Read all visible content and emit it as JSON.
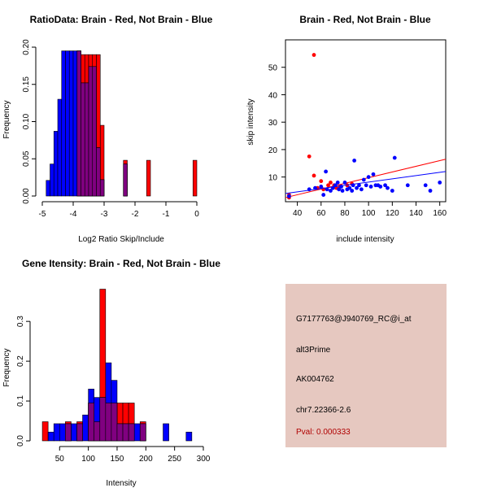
{
  "colors": {
    "red": "#ff0000",
    "blue": "#0000ff",
    "overlap": "#800080",
    "panel": "#e6c8c0",
    "pval": "#b00000"
  },
  "chart_data": [
    {
      "type": "bar",
      "subtype": "overlapping-histogram",
      "title": "RatioData: Brain - Red, Not Brain - Blue",
      "xlabel": "Log2 Ratio Skip/Include",
      "ylabel": "Frequency",
      "xlim": [
        -5,
        0
      ],
      "ylim": [
        0,
        0.2
      ],
      "xticks": [
        -5,
        -4,
        -3,
        -2,
        -1,
        0
      ],
      "yticks": [
        0.0,
        0.05,
        0.1,
        0.15,
        0.2
      ],
      "ytick_labels": [
        "0.00",
        "0.05",
        "0.10",
        "0.15",
        "0.20"
      ],
      "bin_width": 0.125,
      "series": [
        {
          "name": "Brain",
          "color": "#ff0000",
          "bins": [
            [
              -3.875,
              0.195
            ],
            [
              -3.75,
              0.19
            ],
            [
              -3.625,
              0.19
            ],
            [
              -3.5,
              0.19
            ],
            [
              -3.375,
              0.19
            ],
            [
              -3.25,
              0.19
            ],
            [
              -3.125,
              0.095
            ],
            [
              -2.375,
              0.048
            ],
            [
              -1.625,
              0.048
            ],
            [
              -0.125,
              0.048
            ]
          ]
        },
        {
          "name": "Not Brain",
          "color": "#0000ff",
          "bins": [
            [
              -4.875,
              0.021
            ],
            [
              -4.75,
              0.043
            ],
            [
              -4.625,
              0.087
            ],
            [
              -4.5,
              0.13
            ],
            [
              -4.375,
              0.195
            ],
            [
              -4.25,
              0.195
            ],
            [
              -4.125,
              0.195
            ],
            [
              -4.0,
              0.195
            ],
            [
              -3.875,
              0.195
            ],
            [
              -3.75,
              0.152
            ],
            [
              -3.625,
              0.152
            ],
            [
              -3.5,
              0.174
            ],
            [
              -3.375,
              0.174
            ],
            [
              -3.25,
              0.065
            ],
            [
              -3.125,
              0.022
            ],
            [
              -2.375,
              0.043
            ]
          ]
        }
      ]
    },
    {
      "type": "scatter",
      "title": "Brain - Red, Not Brain - Blue",
      "xlabel": "include intensity",
      "ylabel": "skip intensity",
      "xlim": [
        30,
        165
      ],
      "ylim": [
        1,
        60
      ],
      "xticks": [
        40,
        60,
        80,
        100,
        120,
        140,
        160
      ],
      "yticks": [
        10,
        20,
        30,
        40,
        50
      ],
      "series": [
        {
          "name": "Brain",
          "color": "#ff0000",
          "points": [
            [
              33,
              3.5
            ],
            [
              33,
              2.5
            ],
            [
              50,
              17.5
            ],
            [
              54,
              10.5
            ],
            [
              54,
              54.5
            ],
            [
              57,
              6
            ],
            [
              60,
              8.5
            ],
            [
              62,
              5.5
            ],
            [
              66,
              7
            ],
            [
              68,
              8
            ],
            [
              71,
              7
            ],
            [
              73,
              6
            ],
            [
              76,
              6.5
            ],
            [
              82,
              7
            ],
            [
              86,
              7.5
            ]
          ],
          "fit": [
            [
              30,
              2.5
            ],
            [
              165,
              16.5
            ]
          ]
        },
        {
          "name": "Not Brain",
          "color": "#0000ff",
          "points": [
            [
              33,
              3
            ],
            [
              50,
              5.5
            ],
            [
              55,
              6
            ],
            [
              60,
              6.5
            ],
            [
              62,
              3.5
            ],
            [
              64,
              12
            ],
            [
              65,
              5.5
            ],
            [
              68,
              5
            ],
            [
              70,
              6
            ],
            [
              72,
              7
            ],
            [
              74,
              8
            ],
            [
              75,
              5.5
            ],
            [
              77,
              6.5
            ],
            [
              78,
              5
            ],
            [
              80,
              8
            ],
            [
              82,
              5.5
            ],
            [
              84,
              6
            ],
            [
              86,
              5
            ],
            [
              87,
              7
            ],
            [
              88,
              16
            ],
            [
              90,
              6
            ],
            [
              92,
              7
            ],
            [
              94,
              5.5
            ],
            [
              96,
              9
            ],
            [
              98,
              7
            ],
            [
              100,
              10
            ],
            [
              102,
              6.5
            ],
            [
              104,
              11
            ],
            [
              106,
              7
            ],
            [
              108,
              7
            ],
            [
              110,
              6.5
            ],
            [
              114,
              7
            ],
            [
              116,
              6
            ],
            [
              120,
              5
            ],
            [
              122,
              17
            ],
            [
              133,
              7
            ],
            [
              148,
              7
            ],
            [
              152,
              5
            ],
            [
              160,
              8
            ]
          ],
          "fit": [
            [
              30,
              4
            ],
            [
              165,
              12
            ]
          ]
        }
      ]
    },
    {
      "type": "bar",
      "subtype": "overlapping-histogram",
      "title": "Gene Itensity: Brain - Red, Not Brain - Blue",
      "xlabel": "Intensity",
      "ylabel": "Frequency",
      "xlim": [
        10,
        300
      ],
      "ylim": [
        0,
        0.38
      ],
      "xticks": [
        50,
        100,
        150,
        200,
        250,
        300
      ],
      "yticks": [
        0.0,
        0.1,
        0.2,
        0.3
      ],
      "ytick_labels": [
        "0.0",
        "0.1",
        "0.2",
        "0.3"
      ],
      "bin_width": 10,
      "series": [
        {
          "name": "Brain",
          "color": "#ff0000",
          "bins": [
            [
              20,
              0.048
            ],
            [
              60,
              0.048
            ],
            [
              80,
              0.048
            ],
            [
              100,
              0.095
            ],
            [
              110,
              0.048
            ],
            [
              120,
              0.381
            ],
            [
              130,
              0.095
            ],
            [
              140,
              0.095
            ],
            [
              150,
              0.095
            ],
            [
              160,
              0.095
            ],
            [
              170,
              0.095
            ],
            [
              190,
              0.048
            ]
          ]
        },
        {
          "name": "Not Brain",
          "color": "#0000ff",
          "bins": [
            [
              30,
              0.022
            ],
            [
              40,
              0.043
            ],
            [
              50,
              0.043
            ],
            [
              60,
              0.043
            ],
            [
              70,
              0.043
            ],
            [
              80,
              0.043
            ],
            [
              90,
              0.065
            ],
            [
              100,
              0.13
            ],
            [
              110,
              0.109
            ],
            [
              120,
              0.109
            ],
            [
              130,
              0.196
            ],
            [
              140,
              0.152
            ],
            [
              150,
              0.043
            ],
            [
              160,
              0.043
            ],
            [
              170,
              0.043
            ],
            [
              180,
              0.043
            ],
            [
              190,
              0.043
            ],
            [
              230,
              0.043
            ],
            [
              270,
              0.022
            ]
          ]
        }
      ]
    }
  ],
  "info": {
    "probe": "G7177763@J940769_RC@i_at",
    "event_type": "alt3Prime",
    "accession": "AK004762",
    "location": "chr7.22366-2.6",
    "pval": "Pval: 0.000333"
  }
}
